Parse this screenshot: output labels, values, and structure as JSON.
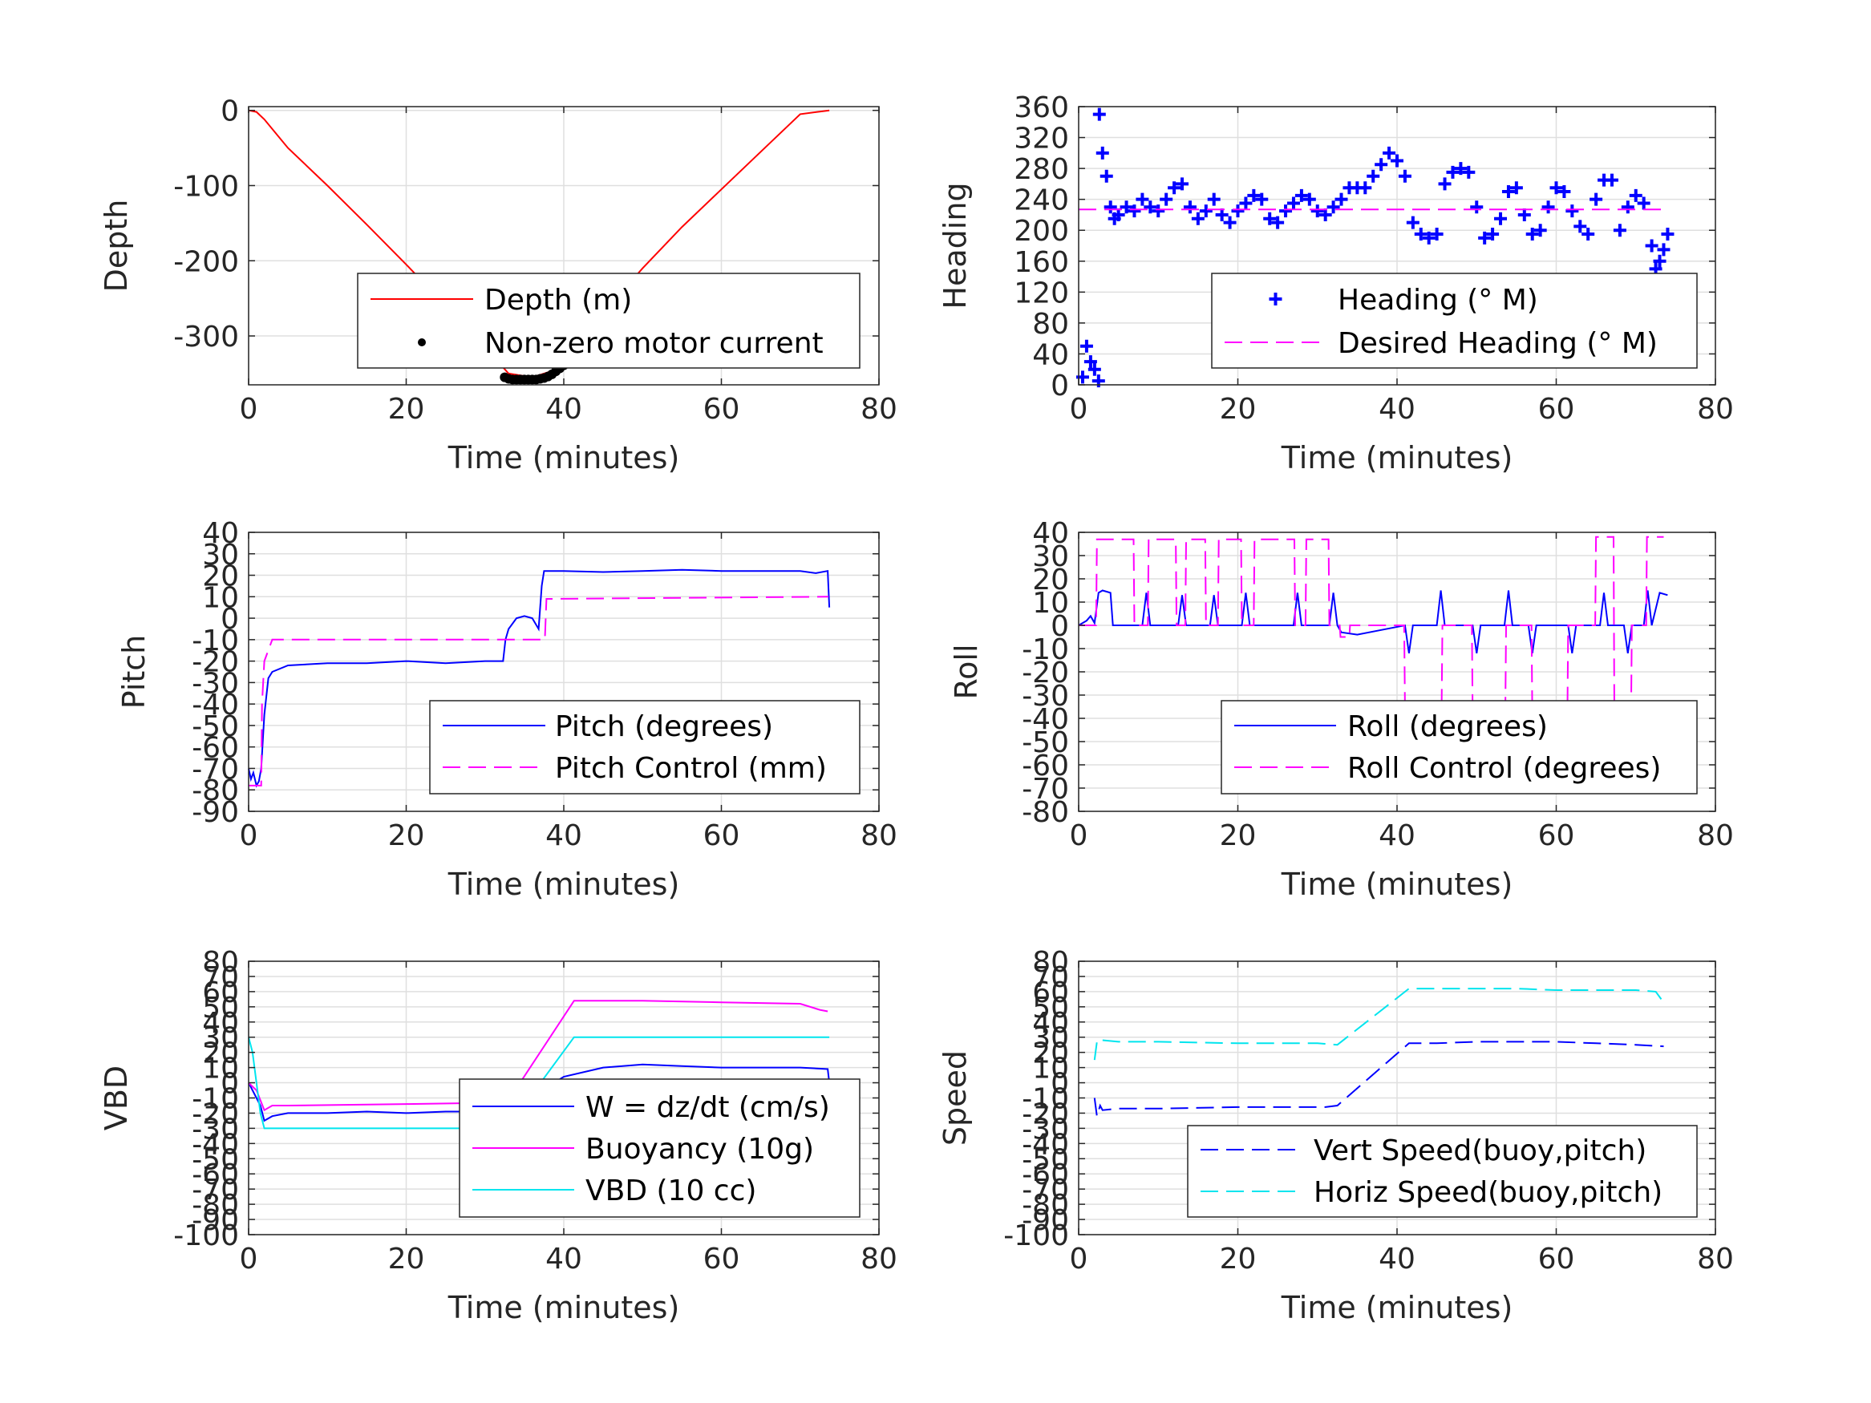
{
  "chart_data": [
    {
      "id": "depth",
      "type": "line",
      "xlabel": "Time (minutes)",
      "ylabel": "Depth",
      "xlim": [
        0,
        80
      ],
      "ylim": [
        -365,
        5
      ],
      "xticks": [
        0,
        20,
        40,
        60,
        80
      ],
      "yticks": [
        -300,
        -200,
        -100,
        0
      ],
      "grid": true,
      "legend": "bottom-right",
      "series": [
        {
          "name": "Depth (m)",
          "style": "solid",
          "color": "#ff0000",
          "x": [
            0,
            1,
            2,
            5,
            10,
            15,
            20,
            25,
            30,
            33,
            36,
            39,
            41,
            45,
            50,
            55,
            60,
            65,
            70,
            73.7
          ],
          "y": [
            0,
            -2,
            -12,
            -50,
            -100,
            -152,
            -205,
            -260,
            -315,
            -350,
            -355,
            -345,
            -325,
            -270,
            -210,
            -155,
            -105,
            -55,
            -5,
            0
          ]
        },
        {
          "name": "Non-zero motor current",
          "style": "dots",
          "color": "#000000",
          "x": [
            32.5,
            33,
            33.5,
            34,
            34.5,
            35,
            35.5,
            36,
            36.5,
            37,
            37.5,
            38,
            38.5,
            39,
            39.5,
            40,
            40.5,
            41
          ],
          "y": [
            -355,
            -357,
            -358,
            -358,
            -358,
            -358,
            -358,
            -358,
            -358,
            -357,
            -356,
            -354,
            -351,
            -347,
            -343,
            -339,
            -334,
            -329
          ]
        }
      ]
    },
    {
      "id": "heading",
      "type": "line",
      "xlabel": "Time (minutes)",
      "ylabel": "Heading",
      "xlim": [
        0,
        80
      ],
      "ylim": [
        0,
        360
      ],
      "xticks": [
        0,
        20,
        40,
        60,
        80
      ],
      "yticks": [
        0,
        40,
        80,
        120,
        160,
        200,
        240,
        280,
        320,
        360
      ],
      "grid": true,
      "legend": "bottom-right",
      "series": [
        {
          "name": "Heading (° M)",
          "style": "plus",
          "color": "#0000ff",
          "x": [
            0.5,
            1,
            1.5,
            2,
            2.5,
            2.6,
            3,
            3.5,
            4,
            4.5,
            5,
            6,
            7,
            8,
            9,
            10,
            11,
            12,
            13,
            14,
            15,
            16,
            17,
            18,
            19,
            20,
            21,
            22,
            23,
            24,
            25,
            26,
            27,
            28,
            29,
            30,
            31,
            32,
            33,
            34,
            35,
            36,
            37,
            38,
            39,
            40,
            41,
            42,
            43,
            44,
            45,
            46,
            47,
            48,
            49,
            50,
            51,
            52,
            53,
            54,
            55,
            56,
            57,
            58,
            59,
            60,
            61,
            62,
            63,
            64,
            65,
            66,
            67,
            68,
            69,
            70,
            71,
            72,
            72.5,
            73,
            73.5,
            74
          ],
          "y": [
            10,
            50,
            30,
            20,
            5,
            350,
            300,
            270,
            230,
            215,
            220,
            230,
            225,
            240,
            230,
            225,
            240,
            255,
            260,
            230,
            215,
            225,
            240,
            220,
            210,
            225,
            235,
            245,
            240,
            215,
            210,
            225,
            235,
            245,
            240,
            225,
            220,
            230,
            240,
            255,
            255,
            255,
            270,
            285,
            300,
            290,
            270,
            210,
            195,
            190,
            195,
            260,
            275,
            280,
            275,
            230,
            190,
            195,
            215,
            250,
            255,
            220,
            195,
            200,
            230,
            255,
            250,
            225,
            205,
            195,
            240,
            265,
            265,
            200,
            230,
            245,
            235,
            180,
            150,
            160,
            175,
            195
          ]
        },
        {
          "name": "Desired Heading (° M)",
          "style": "dashed",
          "color": "#ff00ff",
          "x": [
            0,
            74
          ],
          "y": [
            227,
            227
          ]
        }
      ]
    },
    {
      "id": "pitch",
      "type": "line",
      "xlabel": "Time (minutes)",
      "ylabel": "Pitch",
      "xlim": [
        0,
        80
      ],
      "ylim": [
        -90,
        40
      ],
      "xticks": [
        0,
        20,
        40,
        60,
        80
      ],
      "yticks": [
        -90,
        -80,
        -70,
        -60,
        -50,
        -40,
        -30,
        -20,
        -10,
        0,
        10,
        20,
        30,
        40
      ],
      "grid": true,
      "legend": "bottom-right",
      "series": [
        {
          "name": "Pitch (degrees)",
          "style": "solid",
          "color": "#0000ff",
          "x": [
            0,
            0.3,
            0.6,
            1,
            1.3,
            1.6,
            2,
            2.5,
            3,
            5,
            10,
            15,
            20,
            25,
            30,
            32.3,
            32.6,
            33,
            34,
            35,
            36,
            36.8,
            37.2,
            37.5,
            40,
            45,
            50,
            55,
            60,
            65,
            70,
            72,
            73.5,
            73.7
          ],
          "y": [
            -70,
            -75,
            -72,
            -78,
            -76,
            -70,
            -45,
            -28,
            -25,
            -22,
            -21,
            -21,
            -20,
            -21,
            -20,
            -20,
            -10,
            -5,
            0,
            1,
            0,
            -5,
            15,
            22,
            22,
            21.5,
            22,
            22.5,
            22,
            22,
            22,
            21,
            22,
            5
          ]
        },
        {
          "name": "Pitch Control (mm)",
          "style": "dashed",
          "color": "#ff00ff",
          "x": [
            0,
            1.6,
            1.7,
            2,
            2.8,
            3,
            20,
            32.8,
            33,
            37.6,
            37.8,
            73.6
          ],
          "y": [
            -78,
            -78,
            -40,
            -20,
            -12,
            -10,
            -10,
            -10,
            -10,
            -10,
            9,
            10
          ]
        }
      ]
    },
    {
      "id": "roll",
      "type": "line",
      "xlabel": "Time (minutes)",
      "ylabel": "Roll",
      "xlim": [
        0,
        80
      ],
      "ylim": [
        -80,
        40
      ],
      "xticks": [
        0,
        20,
        40,
        60,
        80
      ],
      "yticks": [
        -80,
        -70,
        -60,
        -50,
        -40,
        -30,
        -20,
        -10,
        0,
        10,
        20,
        30,
        40
      ],
      "grid": true,
      "legend": "bottom-right",
      "series": [
        {
          "name": "Roll (degrees)",
          "style": "solid",
          "color": "#0000ff",
          "x": [
            0,
            1,
            1.5,
            2,
            2.5,
            3,
            4,
            4.3,
            4.6,
            8,
            8.5,
            9,
            12.5,
            13,
            13.5,
            16.5,
            17,
            17.5,
            20.5,
            21,
            21.5,
            27,
            27.5,
            28,
            31.5,
            32,
            32.5,
            33,
            35,
            38,
            41,
            41.5,
            42,
            45,
            45.5,
            46,
            49.5,
            50,
            50.5,
            53.5,
            54,
            54.5,
            56.5,
            57,
            57.5,
            61.5,
            62,
            62.5,
            65.5,
            66,
            66.5,
            68.5,
            69,
            69.5,
            71,
            71.5,
            72,
            73,
            74
          ],
          "y": [
            0,
            2,
            4,
            1,
            14,
            15,
            14,
            0,
            0,
            0,
            14,
            0,
            0,
            13,
            0,
            0,
            13,
            0,
            0,
            14,
            0,
            0,
            14,
            0,
            0,
            14,
            0,
            -3,
            -4,
            -2,
            0,
            -12,
            0,
            0,
            15,
            0,
            0,
            -12,
            0,
            0,
            15,
            0,
            0,
            -12,
            0,
            0,
            -12,
            0,
            0,
            14,
            0,
            0,
            -12,
            0,
            0,
            15,
            0,
            14,
            13
          ]
        },
        {
          "name": "Roll Control (degrees)",
          "style": "dashed",
          "color": "#ff00ff",
          "x": [
            0,
            2.2,
            2.3,
            6.9,
            7,
            8.7,
            8.8,
            12.2,
            12.3,
            13.4,
            13.5,
            15.9,
            16,
            17.5,
            17.6,
            20.4,
            20.5,
            22,
            22.1,
            27.1,
            27.2,
            28.5,
            28.6,
            31.4,
            31.5,
            32.8,
            32.9,
            34,
            34.1,
            40.9,
            41,
            45.6,
            45.7,
            49.4,
            49.5,
            53.6,
            53.7,
            56.9,
            57,
            61.4,
            61.5,
            64.9,
            65,
            67.2,
            67.3,
            69.4,
            69.5,
            71.3,
            71.4,
            73.5
          ],
          "y": [
            0,
            0,
            37,
            37,
            0,
            0,
            37,
            37,
            0,
            0,
            37,
            37,
            0,
            0,
            37,
            37,
            0,
            0,
            37,
            37,
            0,
            0,
            37,
            37,
            0,
            0,
            -5,
            -5,
            0,
            0,
            -35,
            -35,
            0,
            0,
            -38,
            -38,
            0,
            0,
            -40,
            -40,
            0,
            0,
            38,
            38,
            -40,
            -40,
            0,
            0,
            38,
            38
          ]
        }
      ]
    },
    {
      "id": "vbd",
      "type": "line",
      "xlabel": "Time (minutes)",
      "ylabel": "VBD",
      "xlim": [
        0,
        80
      ],
      "ylim": [
        -100,
        80
      ],
      "xticks": [
        0,
        20,
        40,
        60,
        80
      ],
      "yticks": [
        -100,
        -90,
        -80,
        -70,
        -60,
        -50,
        -40,
        -30,
        -20,
        -10,
        0,
        10,
        20,
        30,
        40,
        50,
        60,
        70,
        80
      ],
      "ytick_labels": [
        "-100",
        "-90",
        "-80",
        "-70",
        "-60",
        "-50",
        "-40",
        "-30",
        "-20",
        "-10",
        "0",
        "10",
        "20",
        "30",
        "40",
        "50",
        "60",
        "70",
        "80"
      ],
      "grid": true,
      "legend": "bottom-right",
      "series": [
        {
          "name": "W = dz/dt (cm/s)",
          "style": "solid",
          "color": "#0000ff",
          "x": [
            0,
            0.5,
            1,
            1.5,
            2,
            3,
            5,
            10,
            15,
            20,
            25,
            30,
            32.5,
            35,
            40,
            45,
            50,
            55,
            60,
            65,
            70,
            73.5,
            73.7
          ],
          "y": [
            0,
            -5,
            -10,
            -15,
            -25,
            -22,
            -20,
            -20,
            -19,
            -20,
            -19,
            -19,
            -19,
            -12,
            4,
            10,
            12,
            11,
            10,
            10,
            10,
            9,
            0
          ]
        },
        {
          "name": "Buoyancy (10g)",
          "style": "solid",
          "color": "#ff00ff",
          "x": [
            0,
            1,
            2,
            3,
            5,
            20,
            32.8,
            41.3,
            50,
            60,
            70,
            72.5,
            73.5
          ],
          "y": [
            0,
            -5,
            -18,
            -15,
            -15,
            -14,
            -13,
            54,
            54,
            53,
            52,
            48,
            47
          ]
        },
        {
          "name": "VBD (10 cc)",
          "style": "solid",
          "color": "#00e5ee",
          "x": [
            0,
            0.5,
            1,
            1.5,
            2,
            3,
            20,
            32.8,
            41.3,
            73.7
          ],
          "y": [
            30,
            20,
            0,
            -20,
            -30,
            -30,
            -30,
            -30,
            30,
            30
          ]
        }
      ]
    },
    {
      "id": "speed",
      "type": "line",
      "xlabel": "Time (minutes)",
      "ylabel": "Speed",
      "xlim": [
        0,
        80
      ],
      "ylim": [
        -100,
        80
      ],
      "xticks": [
        0,
        20,
        40,
        60,
        80
      ],
      "yticks": [
        -100,
        -90,
        -80,
        -70,
        -60,
        -50,
        -40,
        -30,
        -20,
        -10,
        0,
        10,
        20,
        30,
        40,
        50,
        60,
        70,
        80
      ],
      "ytick_labels": [
        "-100",
        "-90",
        "-80",
        "-70",
        "-60",
        "-50",
        "-40",
        "-30",
        "-20",
        "-10",
        "0",
        "10",
        "20",
        "30",
        "40",
        "50",
        "60",
        "70",
        "80"
      ],
      "grid": true,
      "legend": "bottom-right",
      "series": [
        {
          "name": "Vert Speed(buoy,pitch)",
          "style": "dashed",
          "color": "#0000ff",
          "x": [
            2,
            2.3,
            2.7,
            3,
            5,
            10,
            20,
            31,
            32.5,
            41.5,
            45,
            50,
            55,
            60,
            65,
            70,
            73.5
          ],
          "y": [
            -10,
            -22,
            -15,
            -18,
            -17,
            -17,
            -16,
            -16,
            -15,
            26,
            26,
            27,
            27,
            27,
            26,
            25,
            24
          ]
        },
        {
          "name": "Horiz Speed(buoy,pitch)",
          "style": "dashed",
          "color": "#00e5ee",
          "x": [
            2,
            2.3,
            2.7,
            3,
            5,
            10,
            20,
            30,
            32.5,
            41.5,
            45,
            50,
            55,
            60,
            65,
            70,
            72.5,
            73.2
          ],
          "y": [
            15,
            27,
            29,
            28,
            27,
            27,
            26,
            26,
            25,
            62,
            62,
            62,
            62,
            61,
            61,
            61,
            60,
            55
          ]
        }
      ]
    }
  ]
}
